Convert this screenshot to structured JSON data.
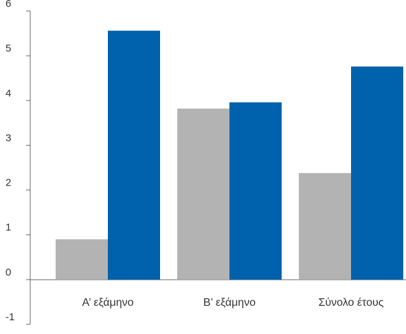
{
  "chart_data": {
    "type": "bar",
    "categories": [
      "Α’ εξάμηνο",
      "Β’ εξάμηνο",
      "Σύνολο έτους"
    ],
    "series": [
      {
        "values": [
          0.9,
          3.82,
          2.38
        ],
        "color": "#b3b3b3"
      },
      {
        "values": [
          5.56,
          3.96,
          4.76
        ],
        "color": "#0062ac"
      }
    ],
    "ylim": [
      -1,
      6
    ],
    "yticks": [
      -1,
      0,
      1,
      2,
      3,
      4,
      5,
      6
    ],
    "grid": false,
    "legend": "none"
  }
}
